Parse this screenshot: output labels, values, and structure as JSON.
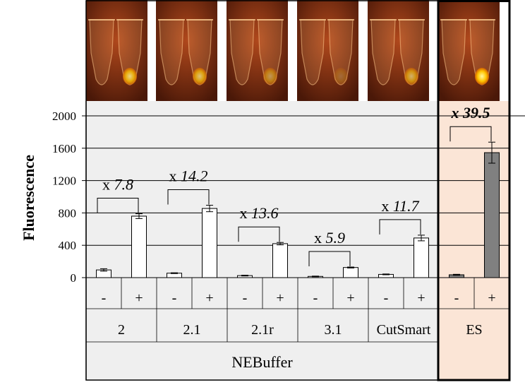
{
  "chart_data": {
    "type": "bar",
    "ylabel": "Fluorescence",
    "xlabel": "NEBuffer",
    "ylim": [
      0,
      2000
    ],
    "yticks": [
      0,
      400,
      800,
      1200,
      1600,
      2000
    ],
    "grid": true,
    "groups": [
      {
        "label": "2",
        "minus": 95,
        "plus": 760,
        "minus_err": 15,
        "plus_err": 30,
        "fold_prefix": "x ",
        "fold": "7.8",
        "highlight": false
      },
      {
        "label": "2.1",
        "minus": 55,
        "plus": 855,
        "minus_err": 5,
        "plus_err": 40,
        "fold_prefix": "x ",
        "fold": "14.2",
        "highlight": false
      },
      {
        "label": "2.1r",
        "minus": 25,
        "plus": 420,
        "minus_err": 5,
        "plus_err": 15,
        "fold_prefix": "x ",
        "fold": "13.6",
        "highlight": false
      },
      {
        "label": "3.1",
        "minus": 15,
        "plus": 125,
        "minus_err": 4,
        "plus_err": 6,
        "fold_prefix": "x ",
        "fold": "5.9",
        "highlight": false
      },
      {
        "label": "CutSmart",
        "minus": 40,
        "plus": 490,
        "minus_err": 5,
        "plus_err": 35,
        "fold_prefix": "x ",
        "fold": "11.7",
        "highlight": false
      },
      {
        "label": "ES",
        "minus": 35,
        "plus": 1545,
        "minus_err": 6,
        "plus_err": 130,
        "fold_prefix": "x ",
        "fold": "39.5",
        "highlight": true
      }
    ],
    "condition_labels": {
      "minus": "-",
      "plus": "+"
    }
  },
  "colors": {
    "panel_bg": "#efefef",
    "es_bg": "#fbe5d6",
    "es_bar": "#808080",
    "bar": "#ffffff",
    "fold_highlight": "#e60000",
    "tube_bg": "#7a2a10"
  }
}
